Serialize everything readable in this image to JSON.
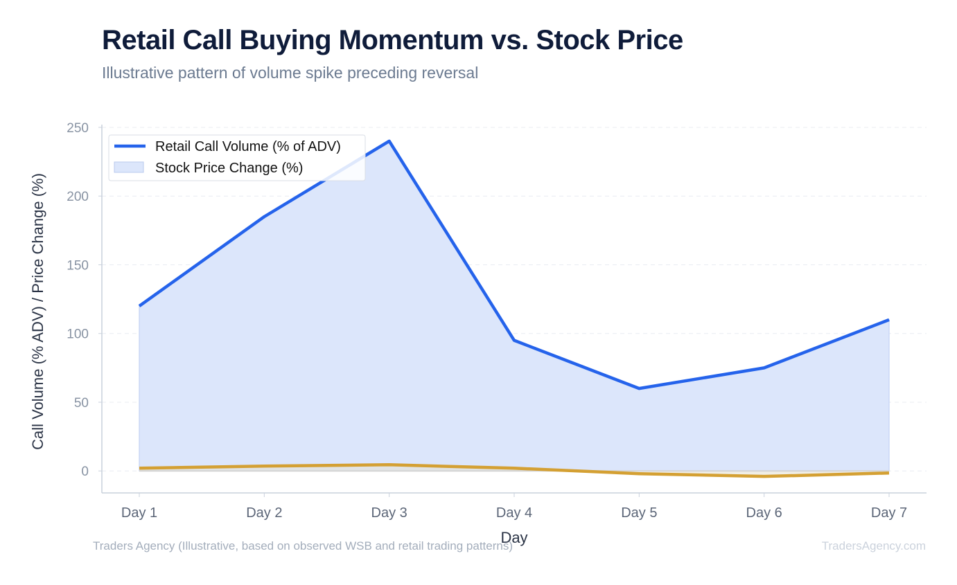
{
  "header": {
    "title": "Retail Call Buying Momentum vs. Stock Price",
    "subtitle": "Illustrative pattern of volume spike preceding reversal"
  },
  "footer": {
    "source": "Traders Agency (Illustrative, based on observed WSB and retail trading patterns)",
    "brand": "TradersAgency.com"
  },
  "chart_data": {
    "type": "line",
    "categories": [
      "Day 1",
      "Day 2",
      "Day 3",
      "Day 4",
      "Day 5",
      "Day 6",
      "Day 7"
    ],
    "series": [
      {
        "name": "Retail Call Volume (% of ADV)",
        "values": [
          120,
          185,
          240,
          95,
          60,
          75,
          110
        ],
        "color": "#2563eb",
        "style": "line-with-area"
      },
      {
        "name": "Stock Price Change (%)",
        "values": [
          2,
          3.5,
          4.5,
          2,
          -2,
          -4,
          -1.5
        ],
        "color": "#d4a033",
        "style": "line"
      }
    ],
    "xlabel": "Day",
    "ylabel": "Call Volume (% ADV) / Price Change (%)",
    "ylim": [
      -16,
      252
    ],
    "yticks": [
      0,
      50,
      100,
      150,
      200,
      250
    ],
    "grid": true,
    "legend": "top-left",
    "area_fill_color": "#dce6fb"
  }
}
